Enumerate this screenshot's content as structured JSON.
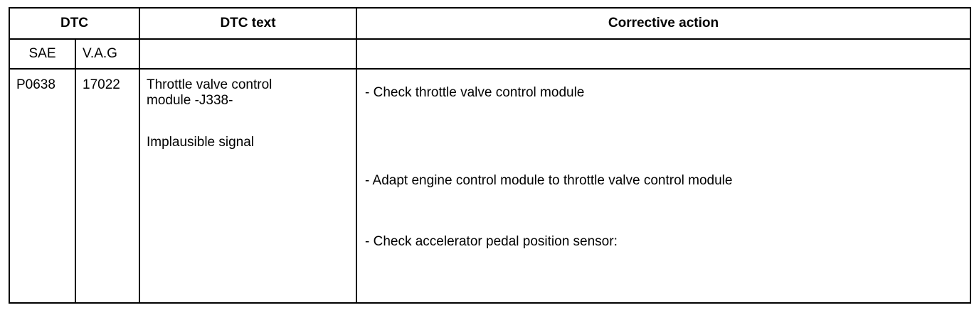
{
  "table": {
    "headers": {
      "dtc": "DTC",
      "dtc_text": "DTC text",
      "corrective_action": "Corrective action"
    },
    "subheaders": {
      "sae": "SAE",
      "vag": "V.A.G"
    },
    "rows": [
      {
        "sae": "P0638",
        "vag": "17022",
        "dtc_text": [
          "Throttle valve control",
          "module -J338-",
          "Implausible signal"
        ],
        "actions": [
          "- Check throttle valve control module",
          "- Adapt engine control module to throttle valve control module",
          "- Check accelerator pedal position sensor:"
        ]
      }
    ]
  }
}
